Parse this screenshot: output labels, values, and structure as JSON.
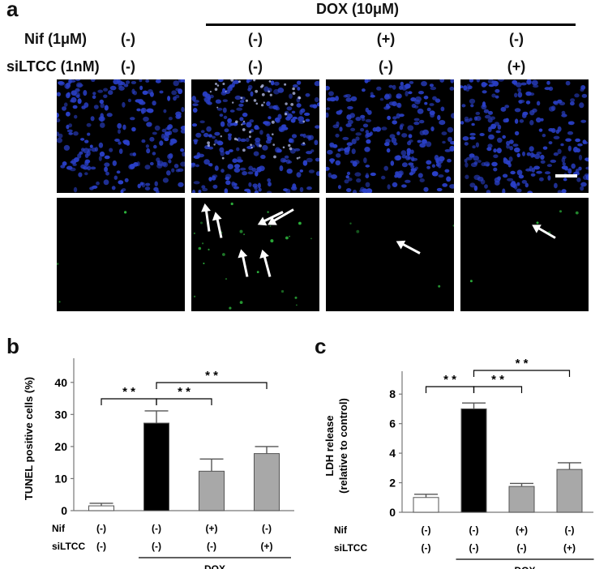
{
  "panel_a": {
    "letter": "a",
    "dox_label": "DOX (10μM)",
    "row_labels": [
      "Nif (1μM)",
      "siLTCC (1nM)"
    ],
    "conditions": [
      {
        "nif": "(-)",
        "siltcc": "(-)"
      },
      {
        "nif": "(-)",
        "siltcc": "(-)"
      },
      {
        "nif": "(+)",
        "siltcc": "(-)"
      },
      {
        "nif": "(-)",
        "siltcc": "(+)"
      }
    ],
    "colors": {
      "nuclei": "#2a40c8",
      "tunel": "#33cc44",
      "arrow": "#ffffff"
    }
  },
  "chart_data": [
    {
      "type": "bar",
      "letter": "b",
      "ylabel": "TUNEL positive cells (%)",
      "ylim": [
        0,
        45
      ],
      "yticks": [
        0,
        10,
        20,
        30,
        40
      ],
      "values": [
        1.5,
        27.3,
        12.3,
        17.8
      ],
      "errors": [
        0.8,
        3.8,
        3.8,
        2.2
      ],
      "bar_colors": [
        "#ffffff",
        "#000000",
        "#a8a8a8",
        "#a8a8a8"
      ],
      "row_labels": [
        "Nif",
        "siLTCC"
      ],
      "nif": [
        "(-)",
        "(-)",
        "(+)",
        "(-)"
      ],
      "siltcc": [
        "(-)",
        "(-)",
        "(-)",
        "(+)"
      ],
      "group_label": "DOX",
      "significance": [
        {
          "from": 0,
          "to": 1,
          "label": "* *"
        },
        {
          "from": 1,
          "to": 2,
          "label": "* *"
        },
        {
          "from": 1,
          "to": 3,
          "label": "* *"
        }
      ]
    },
    {
      "type": "bar",
      "letter": "c",
      "ylabel": "LDH release (relative to control)",
      "ylabel_lines": [
        "LDH release",
        "(relative to control)"
      ],
      "ylim": [
        0,
        9
      ],
      "yticks": [
        0,
        2,
        4,
        6,
        8
      ],
      "values": [
        1.0,
        7.0,
        1.75,
        2.9
      ],
      "errors": [
        0.22,
        0.4,
        0.2,
        0.45
      ],
      "bar_colors": [
        "#ffffff",
        "#000000",
        "#a8a8a8",
        "#a8a8a8"
      ],
      "row_labels": [
        "Nif",
        "siLTCC"
      ],
      "nif": [
        "(-)",
        "(-)",
        "(+)",
        "(-)"
      ],
      "siltcc": [
        "(-)",
        "(-)",
        "(-)",
        "(+)"
      ],
      "group_label": "DOX",
      "significance": [
        {
          "from": 0,
          "to": 1,
          "label": "* *"
        },
        {
          "from": 1,
          "to": 2,
          "label": "* *"
        },
        {
          "from": 1,
          "to": 3,
          "label": "* *"
        }
      ]
    }
  ]
}
